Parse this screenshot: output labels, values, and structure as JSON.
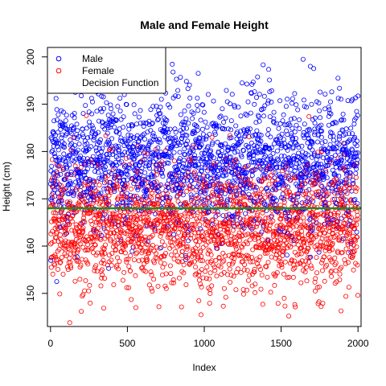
{
  "chart_data": {
    "type": "scatter",
    "title": "Male and Female Height",
    "xlabel": "Index",
    "ylabel": "Height (cm)",
    "xlim": [
      -20,
      2020
    ],
    "ylim": [
      143,
      202
    ],
    "x_ticks": [
      0,
      500,
      1000,
      1500,
      2000
    ],
    "y_ticks": [
      150,
      160,
      170,
      180,
      190,
      200
    ],
    "grid": false,
    "legend": {
      "position": "top-left",
      "entries": [
        "Male",
        "Female",
        "Decision Function"
      ]
    },
    "series": [
      {
        "name": "Male",
        "color": "#0000ff",
        "marker": "open-circle",
        "n_points": 2000,
        "x_range": [
          1,
          2000
        ],
        "mean": 178,
        "sd": 7,
        "sample_points": [
          [
            170,
            198
          ],
          [
            1690,
            198
          ],
          [
            1870,
            195.5
          ],
          [
            845,
            195.7
          ],
          [
            1310,
            194.2
          ],
          [
            2,
            157
          ],
          [
            40,
            152.5
          ]
        ]
      },
      {
        "name": "Female",
        "color": "#ff0000",
        "marker": "open-circle",
        "n_points": 2000,
        "x_range": [
          1,
          2000
        ],
        "mean": 164,
        "sd": 6.5,
        "sample_points": [
          [
            1550,
            145.2
          ],
          [
            200,
            146.2
          ],
          [
            1890,
            146.3
          ],
          [
            1760,
            147.2
          ],
          [
            555,
            147
          ],
          [
            1050,
            183
          ],
          [
            1200,
            178
          ]
        ]
      },
      {
        "name": "Decision Function",
        "color": "#228b22",
        "type": "hline",
        "y": 168
      }
    ]
  }
}
